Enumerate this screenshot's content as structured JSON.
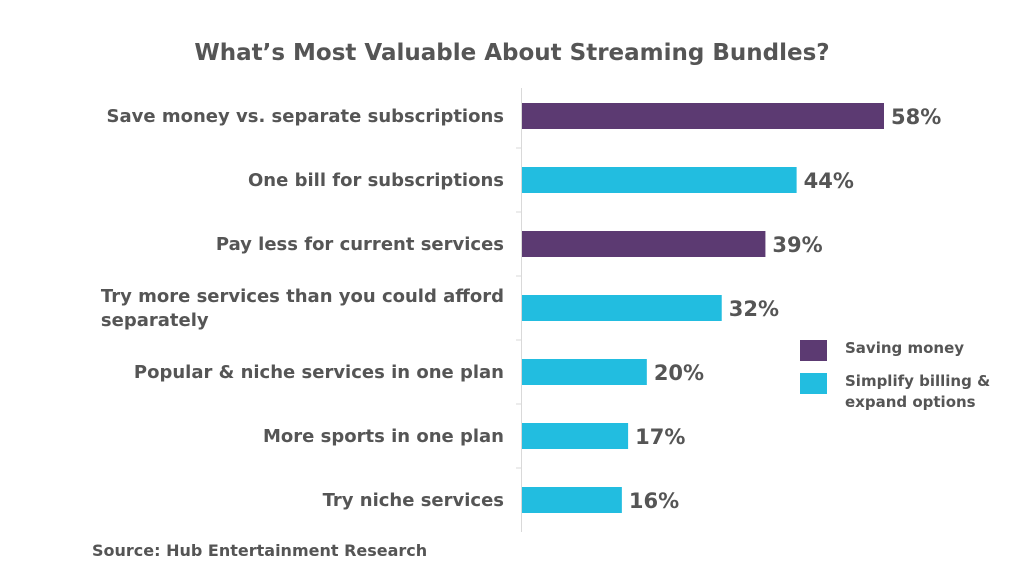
{
  "colors": {
    "saving_money": "#5c3a72",
    "simplify": "#22bde0",
    "axis": "#d9d9d9"
  },
  "chart_data": {
    "type": "bar",
    "orientation": "horizontal",
    "title": "What’s Most Valuable About Streaming Bundles?",
    "value_format": "percent",
    "xlim": [
      0,
      58
    ],
    "categories": [
      [
        "Save money vs. separate subscriptions"
      ],
      [
        "One bill for subscriptions"
      ],
      [
        "Pay less for current services"
      ],
      [
        "Try more services than you could afford",
        "separately"
      ],
      [
        "Popular & niche services in one plan"
      ],
      [
        "More sports in one plan"
      ],
      [
        "Try niche services"
      ]
    ],
    "values": [
      58,
      44,
      39,
      32,
      20,
      17,
      16
    ],
    "value_labels": [
      "58%",
      "44%",
      "39%",
      "32%",
      "20%",
      "17%",
      "16%"
    ],
    "groups": [
      "saving_money",
      "simplify",
      "saving_money",
      "simplify",
      "simplify",
      "simplify",
      "simplify"
    ],
    "legend": [
      {
        "key": "saving_money",
        "label": "Saving money"
      },
      {
        "key": "simplify",
        "label": "Simplify billing &\nexpand options"
      }
    ],
    "legend_position": "right"
  },
  "source": "Source: Hub Entertainment Research"
}
